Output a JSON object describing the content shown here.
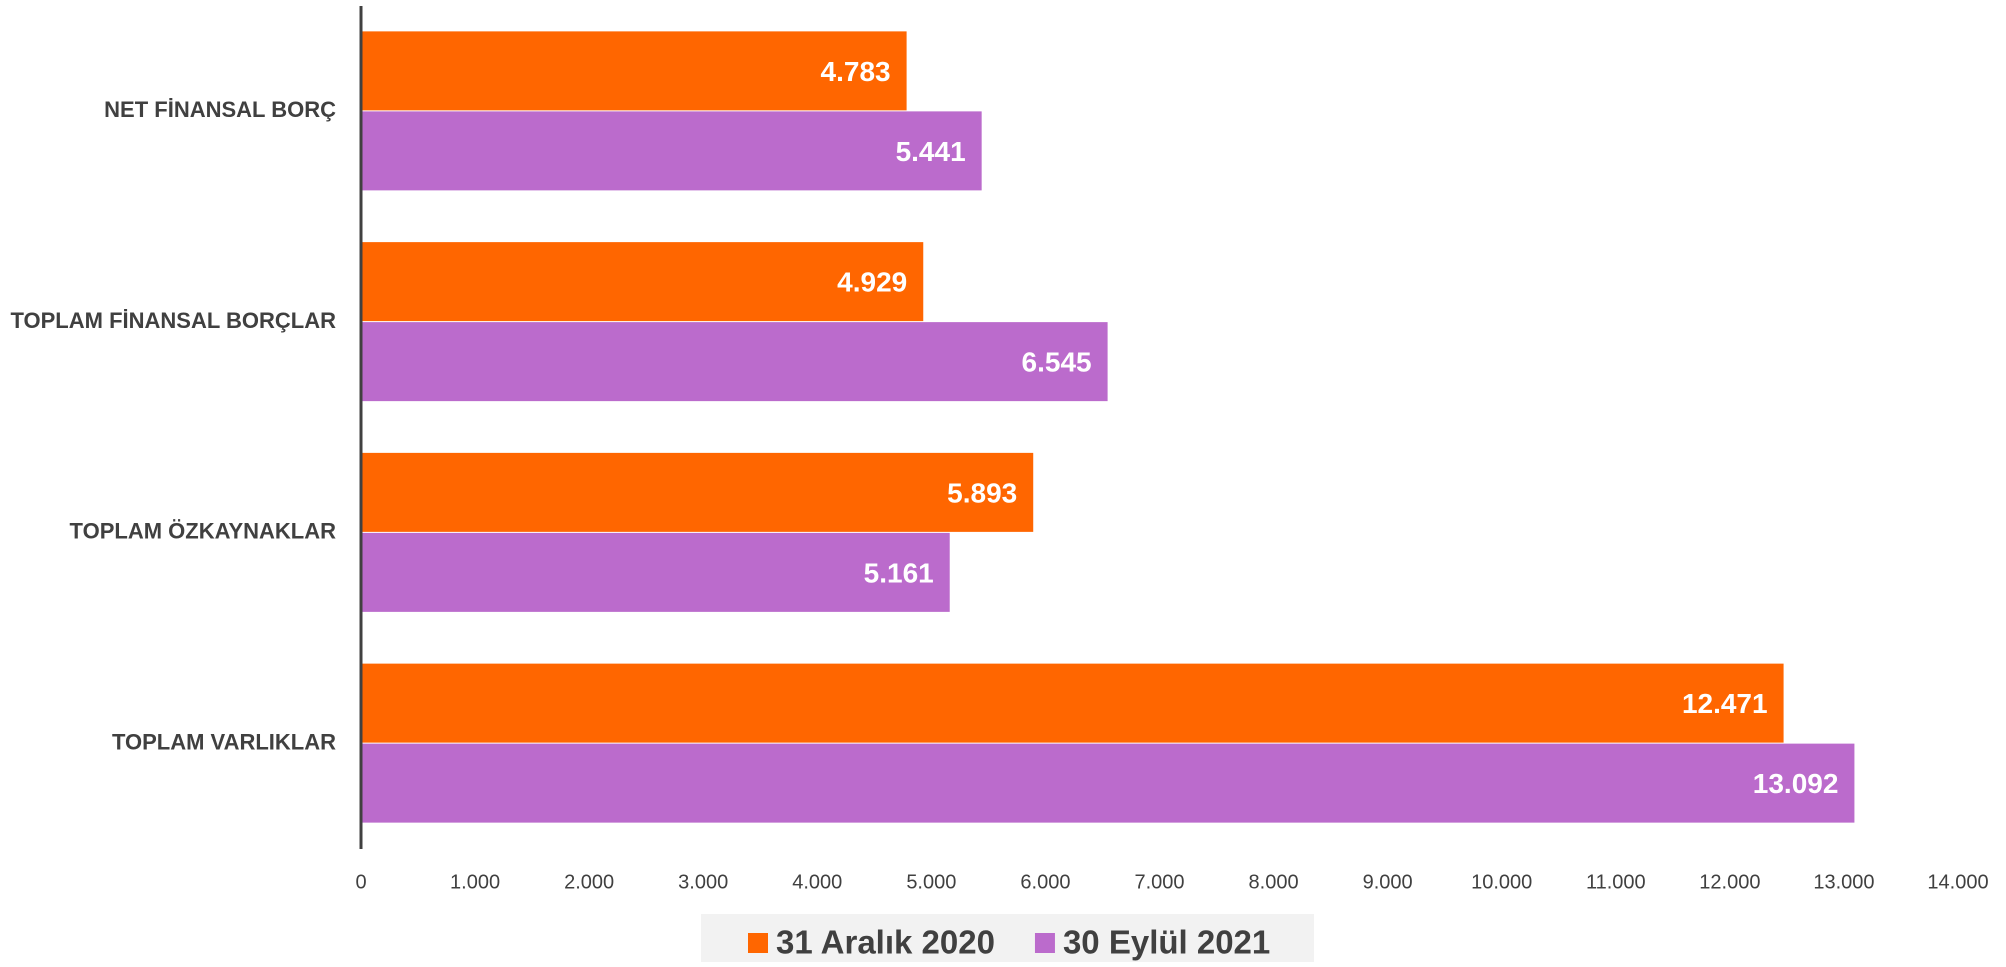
{
  "chart_data": {
    "type": "hbar",
    "categories": [
      "NET FİNANSAL BORÇ",
      "TOPLAM FİNANSAL BORÇLAR",
      "TOPLAM ÖZKAYNAKLAR",
      "TOPLAM VARLIKLAR"
    ],
    "series": [
      {
        "name": "31 Aralık 2020",
        "color": "#ff6600",
        "values": [
          4783,
          4929,
          5893,
          12471
        ],
        "value_labels": [
          "4.783",
          "4.929",
          "5.893",
          "12.471"
        ]
      },
      {
        "name": "30 Eylül 2021",
        "color": "#bb6bcc",
        "values": [
          5441,
          6545,
          5161,
          13092
        ],
        "value_labels": [
          "5.441",
          "6.545",
          "5.161",
          "13.092"
        ]
      }
    ],
    "xlim": [
      0,
      14000
    ],
    "xticks": [
      0,
      {
        "value": 1000,
        "label": "1.000"
      },
      {
        "value": 2000,
        "label": "2.000"
      },
      {
        "value": 3000,
        "label": "3.000"
      },
      {
        "value": 4000,
        "label": "4.000"
      },
      {
        "value": 5000,
        "label": "5.000"
      },
      {
        "value": 6000,
        "label": "6.000"
      },
      {
        "value": 7000,
        "label": "7.000"
      },
      {
        "value": 8000,
        "label": "8.000"
      },
      {
        "value": 9000,
        "label": "9.000"
      },
      {
        "value": 10000,
        "label": "10.000"
      },
      {
        "value": 11000,
        "label": "11.000"
      },
      {
        "value": 12000,
        "label": "12.000"
      },
      {
        "value": 13000,
        "label": "13.000"
      },
      {
        "value": 14000,
        "label": "14.000"
      }
    ],
    "grid": false,
    "legend": "bottom"
  }
}
